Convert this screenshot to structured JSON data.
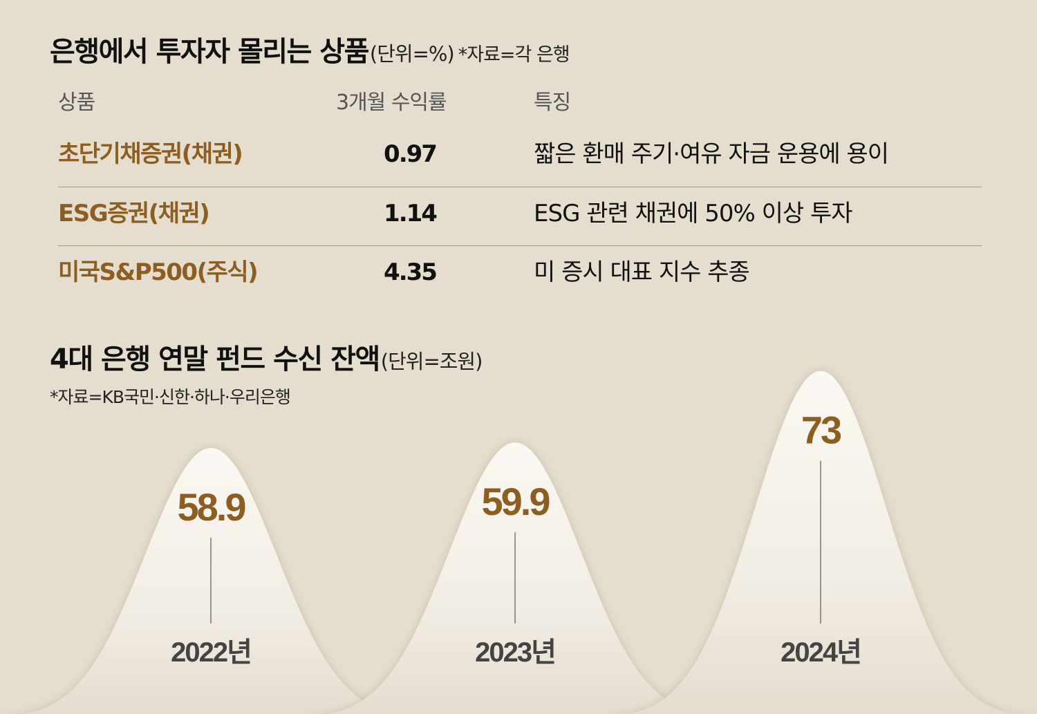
{
  "table_section": {
    "title": "은행에서 투자자 몰리는 상품",
    "unit": "(단위=%)",
    "source": "*자료=각 은행",
    "headers": {
      "product": "상품",
      "return": "3개월 수익률",
      "feature": "특징"
    },
    "rows": [
      {
        "name": "초단기채증권(채권)",
        "value": "0.97",
        "feature": "짧은 환매 주기·여유 자금 운용에 용이"
      },
      {
        "name": "ESG증권(채권)",
        "value": "1.14",
        "feature": "ESG 관련 채권에 50% 이상 투자"
      },
      {
        "name": "미국S&P500(주식)",
        "value": "4.35",
        "feature": "미 증시 대표 지수 추종"
      }
    ]
  },
  "chart_section": {
    "title": "4대 은행 연말 펀드 수신 잔액",
    "unit": "(단위=조원)",
    "source": "*자료=KB국민·신한·하나·우리은행"
  },
  "chart_data": {
    "type": "area",
    "title": "4대 은행 연말 펀드 수신 잔액",
    "unit": "조원",
    "categories": [
      "2022년",
      "2023년",
      "2024년"
    ],
    "values": [
      58.9,
      59.9,
      73
    ],
    "value_labels": [
      "58.9",
      "59.9",
      "73"
    ],
    "colors": {
      "background": "#e5ddcd",
      "hill_top": "#fbf8f3",
      "hill_bottom": "#e4dccd",
      "value_text": "#8c5e22",
      "year_text": "#444444"
    }
  }
}
